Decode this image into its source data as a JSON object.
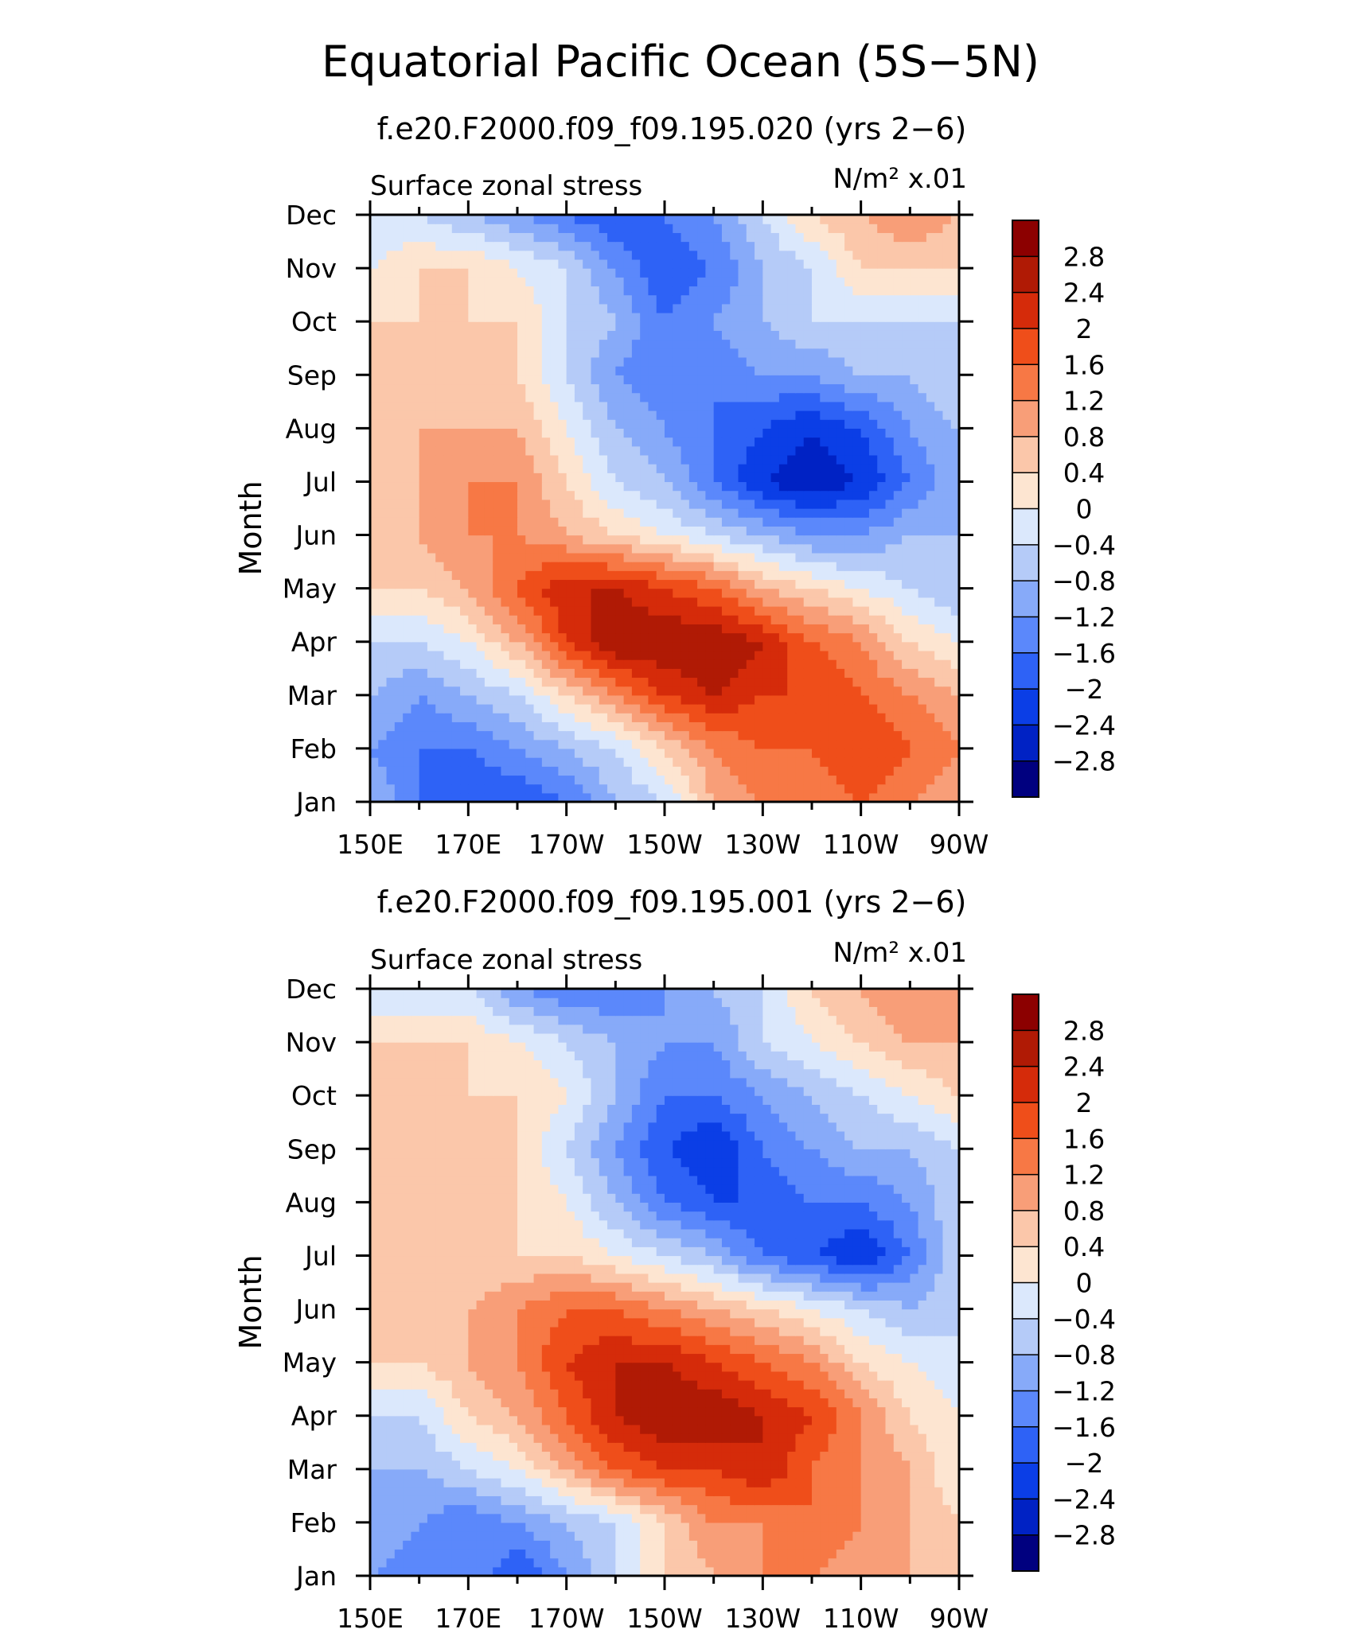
{
  "figure": {
    "title": "Equatorial Pacific Ocean (5S−5N)"
  },
  "chart_data": [
    {
      "type": "heatmap",
      "run": "f.e20.F2000.f09_f09.195.020 (yrs 2−6)",
      "left_label": "Surface zonal stress",
      "right_label": "N/m² x.01",
      "ylabel": "Month",
      "xlabel": "",
      "x": [
        150,
        160,
        170,
        180,
        190,
        200,
        210,
        220,
        230,
        240,
        250,
        260,
        270
      ],
      "x_tick_labels": [
        "150E",
        "170E",
        "170W",
        "150W",
        "130W",
        "110W",
        "90W"
      ],
      "y_tick_labels": [
        "Jan",
        "Feb",
        "Mar",
        "Apr",
        "May",
        "Jun",
        "Jul",
        "Aug",
        "Sep",
        "Oct",
        "Nov",
        "Dec"
      ],
      "xlim": [
        150,
        270
      ],
      "z": [
        [
          -0.8,
          -1.6,
          -2.0,
          -2.0,
          -1.6,
          -0.8,
          -0.4,
          0.8,
          1.2,
          1.2,
          1.6,
          1.2,
          0.8
        ],
        [
          -1.2,
          -1.6,
          -1.6,
          -1.2,
          -0.8,
          -0.4,
          0.4,
          1.2,
          1.6,
          1.6,
          2.0,
          1.6,
          1.2
        ],
        [
          -0.8,
          -1.2,
          -0.8,
          -0.4,
          0.4,
          1.2,
          2.0,
          2.4,
          2.0,
          2.0,
          1.6,
          1.2,
          0.8
        ],
        [
          -0.4,
          -0.4,
          0.0,
          0.8,
          2.0,
          2.8,
          2.8,
          2.8,
          2.4,
          1.6,
          1.2,
          0.4,
          0.0
        ],
        [
          0.4,
          0.4,
          0.8,
          1.6,
          2.4,
          2.4,
          2.0,
          1.6,
          0.8,
          0.4,
          0.0,
          -0.4,
          -0.8
        ],
        [
          0.4,
          0.8,
          1.2,
          1.2,
          0.8,
          0.4,
          0.0,
          -0.4,
          -0.8,
          -1.2,
          -1.2,
          -0.8,
          -0.8
        ],
        [
          0.4,
          0.8,
          1.2,
          1.2,
          0.4,
          -0.4,
          -0.8,
          -1.6,
          -2.4,
          -2.8,
          -2.4,
          -1.6,
          -0.8
        ],
        [
          0.4,
          0.8,
          0.8,
          0.8,
          0.0,
          -0.8,
          -1.2,
          -1.6,
          -2.0,
          -2.4,
          -2.0,
          -1.2,
          -0.8
        ],
        [
          0.4,
          0.4,
          0.4,
          0.4,
          -0.4,
          -1.2,
          -1.6,
          -1.6,
          -1.2,
          -1.2,
          -0.8,
          -0.8,
          -0.4
        ],
        [
          0.4,
          0.4,
          0.4,
          0.4,
          -0.4,
          -0.8,
          -1.6,
          -1.2,
          -0.8,
          -0.4,
          -0.4,
          -0.4,
          -0.4
        ],
        [
          0.0,
          0.4,
          0.4,
          0.0,
          -0.4,
          -1.2,
          -2.0,
          -1.6,
          -0.8,
          -0.4,
          0.4,
          0.4,
          0.4
        ],
        [
          -0.4,
          -0.4,
          -0.8,
          -1.2,
          -1.6,
          -2.0,
          -1.6,
          -1.2,
          -0.4,
          0.4,
          0.8,
          1.2,
          0.8
        ]
      ]
    },
    {
      "type": "heatmap",
      "run": "f.e20.F2000.f09_f09.195.001 (yrs 2−6)",
      "left_label": "Surface zonal stress",
      "right_label": "N/m² x.01",
      "ylabel": "Month",
      "xlabel": "",
      "x": [
        150,
        160,
        170,
        180,
        190,
        200,
        210,
        220,
        230,
        240,
        250,
        260,
        270
      ],
      "x_tick_labels": [
        "150E",
        "170E",
        "170W",
        "150W",
        "130W",
        "110W",
        "90W"
      ],
      "y_tick_labels": [
        "Jan",
        "Feb",
        "Mar",
        "Apr",
        "May",
        "Jun",
        "Jul",
        "Aug",
        "Sep",
        "Oct",
        "Nov",
        "Dec"
      ],
      "xlim": [
        150,
        270
      ],
      "z": [
        [
          -1.2,
          -1.6,
          -1.2,
          -2.0,
          -1.2,
          -0.4,
          0.4,
          0.8,
          1.2,
          1.2,
          0.8,
          0.8,
          0.4
        ],
        [
          -0.8,
          -1.2,
          -1.6,
          -1.2,
          -0.8,
          -0.4,
          0.4,
          1.2,
          1.2,
          1.6,
          1.2,
          0.8,
          0.4
        ],
        [
          -0.8,
          -0.8,
          -0.4,
          0.0,
          0.8,
          1.6,
          2.0,
          2.0,
          2.4,
          1.6,
          1.2,
          0.8,
          0.0
        ],
        [
          -0.4,
          -0.4,
          0.4,
          0.8,
          1.6,
          2.4,
          2.8,
          2.8,
          2.4,
          2.0,
          1.2,
          0.4,
          0.0
        ],
        [
          0.4,
          0.4,
          0.8,
          1.2,
          2.0,
          2.4,
          2.4,
          2.0,
          1.6,
          1.2,
          0.4,
          0.0,
          -0.4
        ],
        [
          0.8,
          0.8,
          0.8,
          1.2,
          1.6,
          1.6,
          1.2,
          0.8,
          0.4,
          0.0,
          -0.4,
          -0.8,
          -0.4
        ],
        [
          0.4,
          0.4,
          0.4,
          0.4,
          0.4,
          0.0,
          -0.4,
          -0.8,
          -1.6,
          -2.0,
          -2.4,
          -1.6,
          -0.4
        ],
        [
          0.4,
          0.4,
          0.4,
          0.4,
          0.0,
          -0.8,
          -1.6,
          -2.0,
          -2.0,
          -1.6,
          -1.6,
          -1.2,
          -0.4
        ],
        [
          0.4,
          0.4,
          0.4,
          0.4,
          -0.4,
          -1.2,
          -2.0,
          -2.4,
          -1.6,
          -1.2,
          -0.8,
          -0.8,
          -0.4
        ],
        [
          0.4,
          0.4,
          0.4,
          0.4,
          0.0,
          -0.8,
          -1.6,
          -1.6,
          -1.2,
          -0.8,
          -0.4,
          0.0,
          0.4
        ],
        [
          0.4,
          0.4,
          0.4,
          0.0,
          -0.4,
          -0.8,
          -1.2,
          -1.2,
          -0.4,
          0.0,
          0.4,
          0.8,
          0.8
        ],
        [
          -0.4,
          -0.4,
          -0.4,
          -1.2,
          -1.6,
          -1.6,
          -1.2,
          -0.8,
          -0.4,
          0.4,
          0.8,
          1.2,
          0.8
        ]
      ]
    }
  ],
  "colorbar": {
    "levels": [
      -2.8,
      -2.4,
      -2.0,
      -1.6,
      -1.2,
      -0.8,
      -0.4,
      0,
      0.4,
      0.8,
      1.2,
      1.6,
      2.0,
      2.4,
      2.8
    ],
    "labels": [
      "−2.8",
      "−2.4",
      "−2",
      "−1.6",
      "−1.2",
      "−0.8",
      "−0.4",
      "0",
      "0.4",
      "0.8",
      "1.2",
      "1.6",
      "2",
      "2.4",
      "2.8"
    ],
    "colors": [
      "#00007f",
      "#0022c4",
      "#0b3ee6",
      "#2e62f6",
      "#5b88fb",
      "#87aaf9",
      "#b5cbf8",
      "#dbe8fc",
      "#fde5d1",
      "#fbc7aa",
      "#f89e78",
      "#f77845",
      "#ef4e1a",
      "#d52b0a",
      "#b01a05",
      "#8c0000"
    ]
  }
}
